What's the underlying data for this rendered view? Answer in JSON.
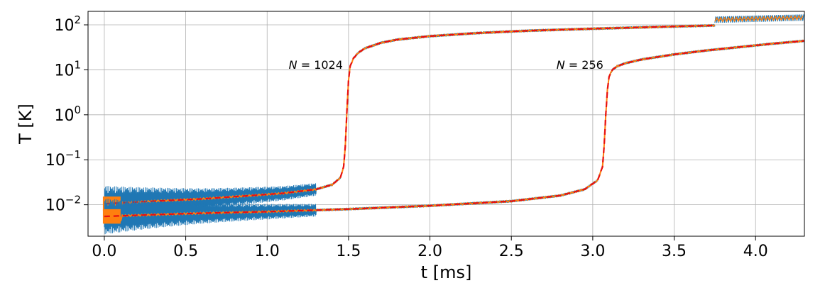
{
  "chart_data": {
    "type": "line",
    "xlabel": "t [ms]",
    "ylabel": "T [K]",
    "xlim": [
      -0.1,
      4.3
    ],
    "ylim_log10": [
      -2.7,
      2.3
    ],
    "yscale": "log",
    "grid": true,
    "x_ticks": [
      {
        "value": 0.0,
        "label": "0.0"
      },
      {
        "value": 0.5,
        "label": "0.5"
      },
      {
        "value": 1.0,
        "label": "1.0"
      },
      {
        "value": 1.5,
        "label": "1.5"
      },
      {
        "value": 2.0,
        "label": "2.0"
      },
      {
        "value": 2.5,
        "label": "2.5"
      },
      {
        "value": 3.0,
        "label": "3.0"
      },
      {
        "value": 3.5,
        "label": "3.5"
      },
      {
        "value": 4.0,
        "label": "4.0"
      }
    ],
    "y_ticks": [
      {
        "exp": -2,
        "base": "10",
        "sup": "−2"
      },
      {
        "exp": -1,
        "base": "10",
        "sup": "−1"
      },
      {
        "exp": 0,
        "base": "10",
        "sup": "0"
      },
      {
        "exp": 1,
        "base": "10",
        "sup": "1"
      },
      {
        "exp": 2,
        "base": "10",
        "sup": "2"
      }
    ],
    "annotations": [
      {
        "text_italic": "N",
        "text": " = 1024",
        "at": [
          1.5,
          13
        ]
      },
      {
        "text_italic": "N",
        "text": " = 256",
        "at": [
          3.1,
          13
        ]
      }
    ],
    "colors": {
      "instantaneous": "#1f77b4",
      "averaged": "#ff7f0e",
      "fit": "#e81010"
    },
    "series": [
      {
        "run": "N = 1024",
        "style": "dashed",
        "x": [
          0.0,
          0.3,
          0.6,
          0.9,
          1.1,
          1.3,
          1.4,
          1.45,
          1.47,
          1.48,
          1.49,
          1.5,
          1.51,
          1.53,
          1.56,
          1.6,
          1.7,
          1.8,
          2.0,
          2.3,
          2.6,
          3.0,
          3.4,
          3.75
        ],
        "y": [
          0.0105,
          0.012,
          0.0135,
          0.016,
          0.018,
          0.022,
          0.028,
          0.04,
          0.07,
          0.2,
          1.2,
          6,
          12,
          18,
          24,
          30,
          40,
          47,
          56,
          66,
          74,
          82,
          90,
          97
        ]
      },
      {
        "run": "N = 1024 (t > 3.75 ms)",
        "style": "oscillating",
        "x": [
          3.75,
          4.3
        ],
        "y": [
          130,
          145
        ]
      },
      {
        "run": "N = 256",
        "style": "dashed",
        "x": [
          0.0,
          0.3,
          0.6,
          1.0,
          1.5,
          2.0,
          2.5,
          2.8,
          2.95,
          3.03,
          3.06,
          3.07,
          3.08,
          3.09,
          3.1,
          3.12,
          3.15,
          3.2,
          3.3,
          3.5,
          3.7,
          3.9,
          4.1,
          4.3
        ],
        "y": [
          0.0055,
          0.006,
          0.0065,
          0.007,
          0.008,
          0.0095,
          0.012,
          0.016,
          0.022,
          0.035,
          0.07,
          0.2,
          1.0,
          3.5,
          7,
          10,
          12,
          14,
          17,
          22,
          27,
          32,
          38,
          44
        ]
      }
    ]
  }
}
